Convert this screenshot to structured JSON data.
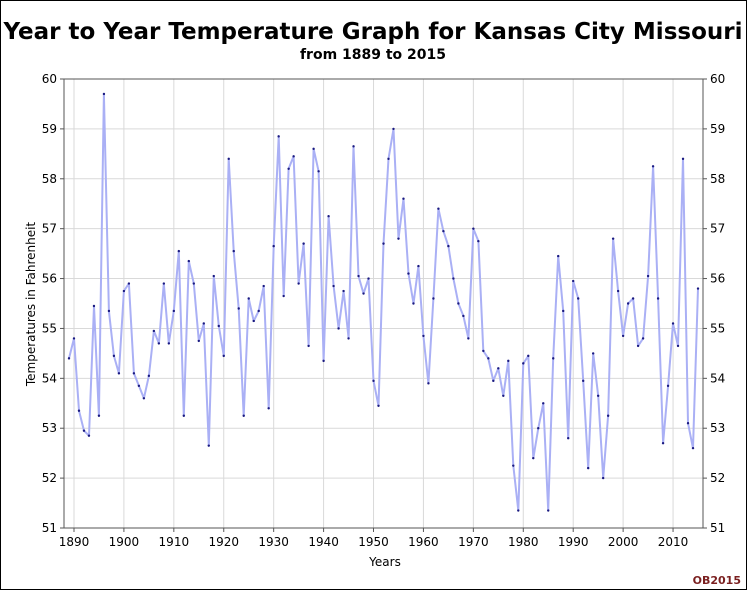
{
  "chart_data": {
    "type": "line",
    "title": "Year to Year Temperature Graph for Kansas City Missouri",
    "subtitle": "from 1889 to 2015",
    "xlabel": "Years",
    "ylabel": "Temperatures in Fahrenheit",
    "xlim": [
      1888,
      2016
    ],
    "ylim": [
      51,
      60
    ],
    "x_ticks": [
      1890,
      1900,
      1910,
      1920,
      1930,
      1940,
      1950,
      1960,
      1970,
      1980,
      1990,
      2000,
      2010
    ],
    "y_ticks": [
      51,
      52,
      53,
      54,
      55,
      56,
      57,
      58,
      59,
      60
    ],
    "grid": true,
    "right_axis": true,
    "line_color": "#aab0f5",
    "marker_color": "#1a1a80",
    "x": [
      1889,
      1890,
      1891,
      1892,
      1893,
      1894,
      1895,
      1896,
      1897,
      1898,
      1899,
      1900,
      1901,
      1902,
      1903,
      1904,
      1905,
      1906,
      1907,
      1908,
      1909,
      1910,
      1911,
      1912,
      1913,
      1914,
      1915,
      1916,
      1917,
      1918,
      1919,
      1920,
      1921,
      1922,
      1923,
      1924,
      1925,
      1926,
      1927,
      1928,
      1929,
      1930,
      1931,
      1932,
      1933,
      1934,
      1935,
      1936,
      1937,
      1938,
      1939,
      1940,
      1941,
      1942,
      1943,
      1944,
      1945,
      1946,
      1947,
      1948,
      1949,
      1950,
      1951,
      1952,
      1953,
      1954,
      1955,
      1956,
      1957,
      1958,
      1959,
      1960,
      1961,
      1962,
      1963,
      1964,
      1965,
      1966,
      1967,
      1968,
      1969,
      1970,
      1971,
      1972,
      1973,
      1974,
      1975,
      1976,
      1977,
      1978,
      1979,
      1980,
      1981,
      1982,
      1983,
      1984,
      1985,
      1986,
      1987,
      1988,
      1989,
      1990,
      1991,
      1992,
      1993,
      1994,
      1995,
      1996,
      1997,
      1998,
      1999,
      2000,
      2001,
      2002,
      2003,
      2004,
      2005,
      2006,
      2007,
      2008,
      2009,
      2010,
      2011,
      2012,
      2013,
      2014,
      2015
    ],
    "y": [
      54.4,
      54.8,
      53.35,
      52.95,
      52.85,
      55.45,
      53.25,
      59.7,
      55.35,
      54.45,
      54.1,
      55.75,
      55.9,
      54.1,
      53.85,
      53.6,
      54.05,
      54.95,
      54.7,
      55.9,
      54.7,
      55.35,
      56.55,
      53.25,
      56.35,
      55.9,
      54.75,
      55.1,
      52.65,
      56.05,
      55.05,
      54.45,
      58.4,
      56.55,
      55.4,
      53.25,
      55.6,
      55.15,
      55.35,
      55.85,
      53.4,
      56.65,
      58.85,
      55.65,
      58.2,
      58.45,
      55.9,
      56.7,
      54.65,
      58.6,
      58.15,
      54.35,
      57.25,
      55.85,
      55.0,
      55.75,
      54.8,
      58.65,
      56.05,
      55.7,
      56.0,
      53.95,
      53.45,
      56.7,
      58.4,
      59.0,
      56.8,
      57.6,
      56.1,
      55.5,
      56.25,
      54.85,
      53.9,
      55.6,
      57.4,
      56.95,
      56.65,
      56.0,
      55.5,
      55.25,
      54.8,
      57.0,
      56.75,
      54.55,
      54.4,
      53.95,
      54.2,
      53.65,
      54.35,
      52.25,
      51.35,
      54.3,
      54.45,
      52.4,
      53.0,
      53.5,
      51.35,
      54.4,
      56.45,
      55.35,
      52.8,
      55.95,
      55.6,
      53.95,
      52.2,
      54.5,
      53.65,
      52.0,
      53.25,
      56.8,
      55.75,
      54.85,
      55.5,
      55.6,
      54.65,
      54.8,
      56.05,
      58.25,
      55.6,
      52.7,
      53.85,
      55.1,
      54.65,
      58.4,
      53.1,
      52.6,
      55.8
    ]
  },
  "watermark": "OB2015",
  "colors": {
    "grid": "#d9d9d9",
    "axis": "#555555",
    "watermark_text": "#7a1f1f"
  }
}
